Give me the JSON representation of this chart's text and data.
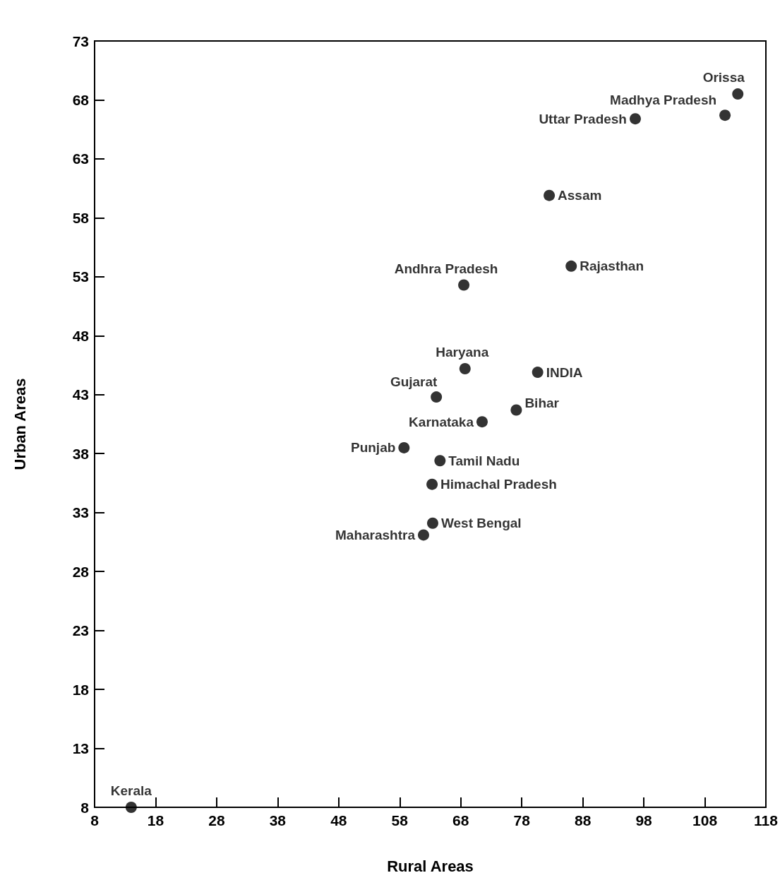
{
  "chart_data": {
    "type": "scatter",
    "xlabel": "Rural Areas",
    "ylabel": "Urban Areas",
    "x": [
      14.0,
      113.4,
      111.3,
      96.6,
      82.5,
      86.1,
      68.5,
      68.7,
      80.6,
      64.0,
      77.1,
      71.5,
      58.7,
      64.6,
      63.3,
      63.4,
      61.9
    ],
    "values": [
      8,
      68.5,
      66.7,
      66.4,
      59.9,
      53.9,
      52.3,
      45.2,
      44.9,
      42.8,
      41.7,
      40.7,
      38.5,
      37.4,
      35.4,
      32.1,
      31.1
    ],
    "color": "#000000",
    "marker": "circle",
    "grid": false,
    "xlim": [
      8,
      118
    ],
    "xticks": [
      8,
      18,
      28,
      38,
      48,
      58,
      68,
      78,
      88,
      98,
      108,
      118
    ],
    "ylim": [
      8,
      73
    ],
    "yticks": [
      8,
      13,
      18,
      23,
      28,
      33,
      38,
      43,
      48,
      53,
      58,
      63,
      68,
      73
    ],
    "annotations": [
      {
        "text": "Kerala",
        "x": 14.0,
        "y": 8
      },
      {
        "text": "Orissa",
        "x": 113.4,
        "y": 68.5
      },
      {
        "text": "Madhya Pradesh",
        "x": 111.3,
        "y": 66.7
      },
      {
        "text": "Uttar Pradesh",
        "x": 96.6,
        "y": 66.4
      },
      {
        "text": "Assam",
        "x": 82.5,
        "y": 59.9
      },
      {
        "text": "Rajasthan",
        "x": 86.1,
        "y": 53.9
      },
      {
        "text": "Andhra Pradesh",
        "x": 68.5,
        "y": 52.3
      },
      {
        "text": "Haryana",
        "x": 68.7,
        "y": 45.2
      },
      {
        "text": "INDIA",
        "x": 80.6,
        "y": 44.9
      },
      {
        "text": "Gujarat",
        "x": 64.0,
        "y": 42.8
      },
      {
        "text": "Bihar",
        "x": 77.1,
        "y": 41.7
      },
      {
        "text": "Karnataka",
        "x": 71.5,
        "y": 40.7
      },
      {
        "text": "Punjab",
        "x": 58.7,
        "y": 38.5
      },
      {
        "text": "Tamil Nadu",
        "x": 64.6,
        "y": 37.4
      },
      {
        "text": "Himachal Pradesh",
        "x": 63.3,
        "y": 35.4
      },
      {
        "text": "West Bengal",
        "x": 63.4,
        "y": 32.1
      },
      {
        "text": "Maharashtra",
        "x": 61.9,
        "y": 31.1
      }
    ]
  }
}
